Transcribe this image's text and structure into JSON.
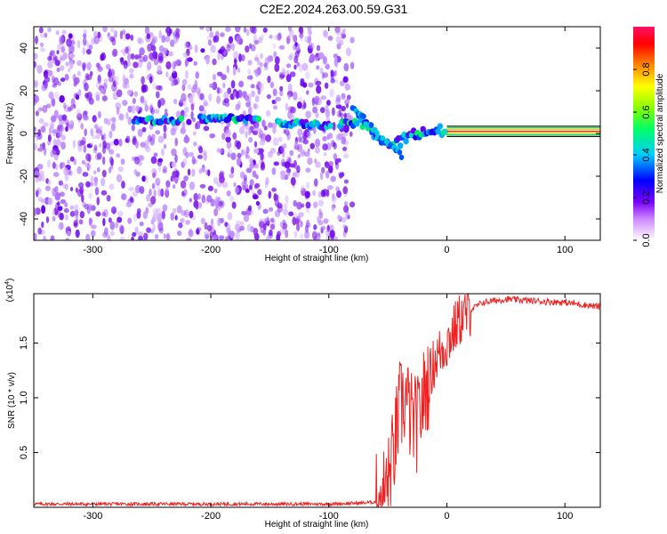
{
  "title": "C2E2.2024.263.00.59.G31",
  "chart_data": [
    {
      "type": "heatmap",
      "xlabel": "Height of straight line (km)",
      "ylabel": "Frequency (Hz)",
      "xlim": [
        -350,
        130
      ],
      "ylim": [
        -50,
        50
      ],
      "xticks": [
        -300,
        -200,
        -100,
        0,
        100
      ],
      "yticks": [
        -40,
        -20,
        0,
        20,
        40
      ],
      "colorbar": {
        "label": "Normalized spectral amplitude",
        "range": [
          0,
          1
        ],
        "ticks": [
          0.0,
          0.2,
          0.4,
          0.6,
          0.8
        ],
        "tick_labels": [
          "0.0",
          "0.2",
          "0.4",
          "0.6",
          "0.8"
        ]
      },
      "features": {
        "noise_region_x": [
          -350,
          -80
        ],
        "signal_trace": [
          {
            "x": -265,
            "y": 6
          },
          {
            "x": -240,
            "y": 6
          },
          {
            "x": -200,
            "y": 7
          },
          {
            "x": -170,
            "y": 7
          },
          {
            "x": -140,
            "y": 5
          },
          {
            "x": -110,
            "y": 4
          },
          {
            "x": -90,
            "y": 4
          },
          {
            "x": -75,
            "y": 6
          },
          {
            "x": -65,
            "y": 2
          },
          {
            "x": -55,
            "y": -3
          },
          {
            "x": -45,
            "y": -6
          },
          {
            "x": -35,
            "y": -2
          },
          {
            "x": -25,
            "y": 0
          },
          {
            "x": -15,
            "y": 1
          },
          {
            "x": 0,
            "y": 1
          },
          {
            "x": 130,
            "y": 0
          }
        ],
        "steady_band_x": [
          0,
          130
        ]
      }
    },
    {
      "type": "line",
      "xlabel": "Height of straight line (km)",
      "ylabel": "SNR (10 * v/v)",
      "multiplier": "(x10",
      "multiplier_exp": "4",
      "xlim": [
        -350,
        130
      ],
      "ylim": [
        0,
        1.95
      ],
      "xticks": [
        -300,
        -200,
        -100,
        0,
        100
      ],
      "yticks": [
        0.5,
        1.0,
        1.5
      ],
      "ytick_labels": [
        "0.5",
        "1.0",
        "1.5"
      ],
      "series": [
        {
          "color": "#ee2222",
          "points": [
            {
              "x": -350,
              "y": 0.03
            },
            {
              "x": -200,
              "y": 0.03
            },
            {
              "x": -100,
              "y": 0.03
            },
            {
              "x": -70,
              "y": 0.04
            },
            {
              "x": -60,
              "y": 0.05
            },
            {
              "x": -50,
              "y": 0.2
            },
            {
              "x": -45,
              "y": 0.5
            },
            {
              "x": -40,
              "y": 0.9
            },
            {
              "x": -35,
              "y": 1.0
            },
            {
              "x": -30,
              "y": 0.8
            },
            {
              "x": -25,
              "y": 0.75
            },
            {
              "x": -20,
              "y": 1.0
            },
            {
              "x": -10,
              "y": 1.35
            },
            {
              "x": 0,
              "y": 1.5
            },
            {
              "x": 10,
              "y": 1.7
            },
            {
              "x": 20,
              "y": 1.8
            },
            {
              "x": 30,
              "y": 1.87
            },
            {
              "x": 50,
              "y": 1.9
            },
            {
              "x": 80,
              "y": 1.88
            },
            {
              "x": 100,
              "y": 1.87
            },
            {
              "x": 130,
              "y": 1.83
            }
          ]
        }
      ]
    }
  ]
}
